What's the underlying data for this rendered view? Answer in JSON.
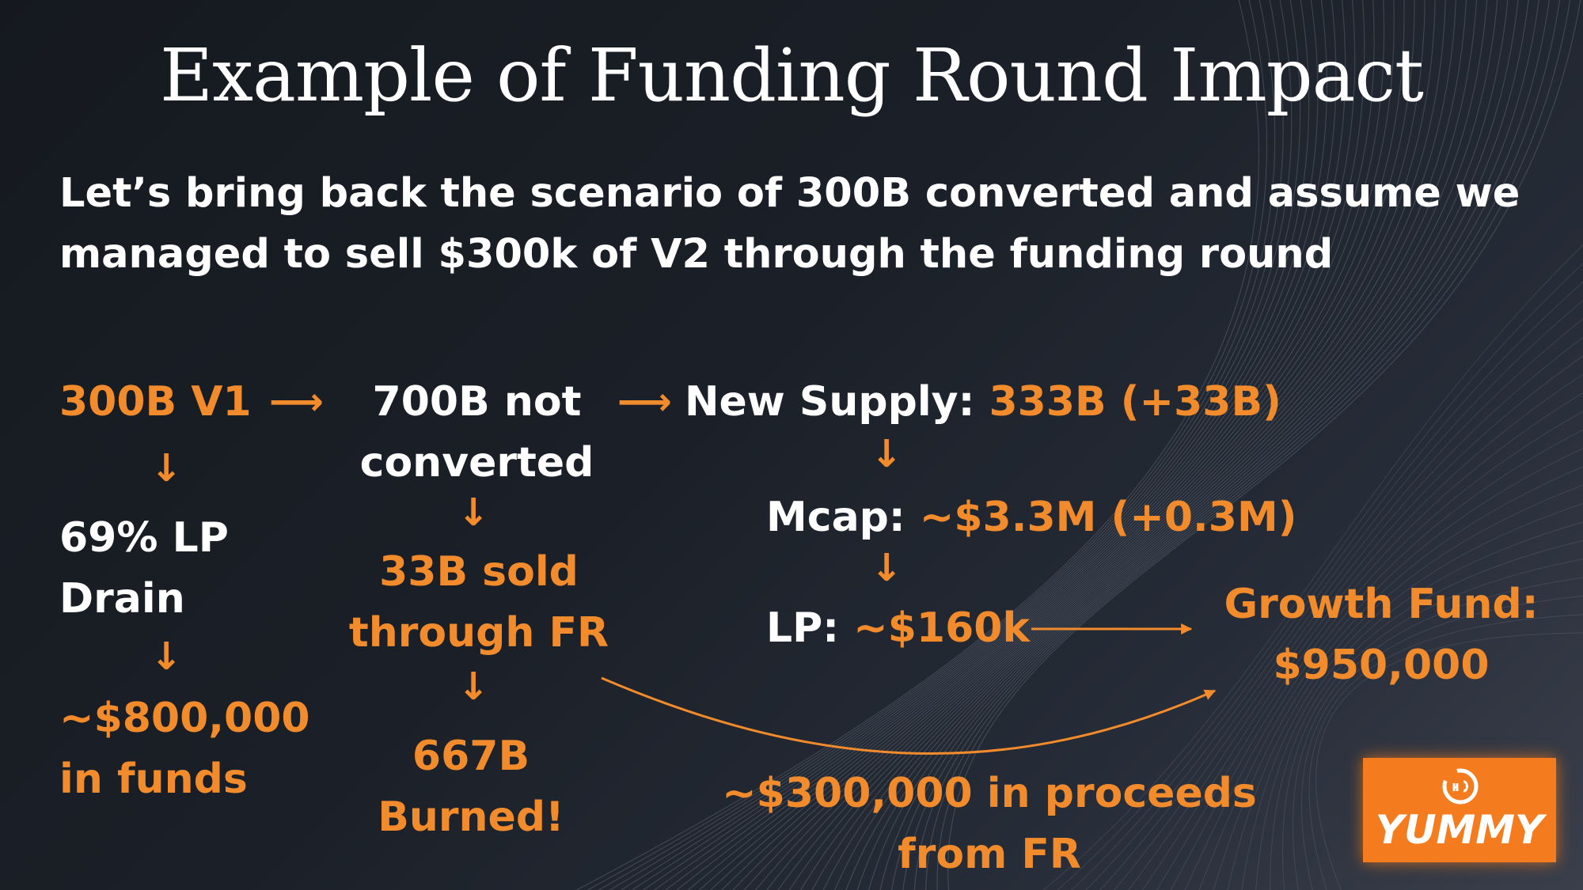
{
  "slide": {
    "title": "Example of Funding Round Impact",
    "subtitle_line1": "Let’s bring back the scenario of 300B converted and assume we",
    "subtitle_line2": "managed to sell $300k of V2 through the funding round"
  },
  "nodes": {
    "v1": "300B V1",
    "not_converted_line1": "700B not",
    "not_converted_line2": "converted",
    "new_supply_label": "New Supply:",
    "new_supply_value": "333B (+33B)",
    "lp_drain_line1": "69% LP",
    "lp_drain_line2": "Drain",
    "sold_line1": "33B sold",
    "sold_line2": "through FR",
    "mcap_label": "Mcap:",
    "mcap_value": "~$3.3M (+0.3M)",
    "lp_label": "LP:",
    "lp_value": "~$160k",
    "growth_line1": "Growth Fund:",
    "growth_line2": "$950,000",
    "funds_line1": "~$800,000",
    "funds_line2": "in funds",
    "burned_line1": "667B",
    "burned_line2": "Burned!",
    "proceeds_line1": "~$300,000 in proceeds",
    "proceeds_line2": "from FR"
  },
  "arrows": {
    "right": "⟶",
    "down": "↓"
  },
  "logo": {
    "text": "YUMMY",
    "icon": "yummy-logo-icon"
  },
  "colors": {
    "accent": "#f28b2c",
    "text": "#ffffff",
    "logo_bg": "#f47b1e"
  }
}
